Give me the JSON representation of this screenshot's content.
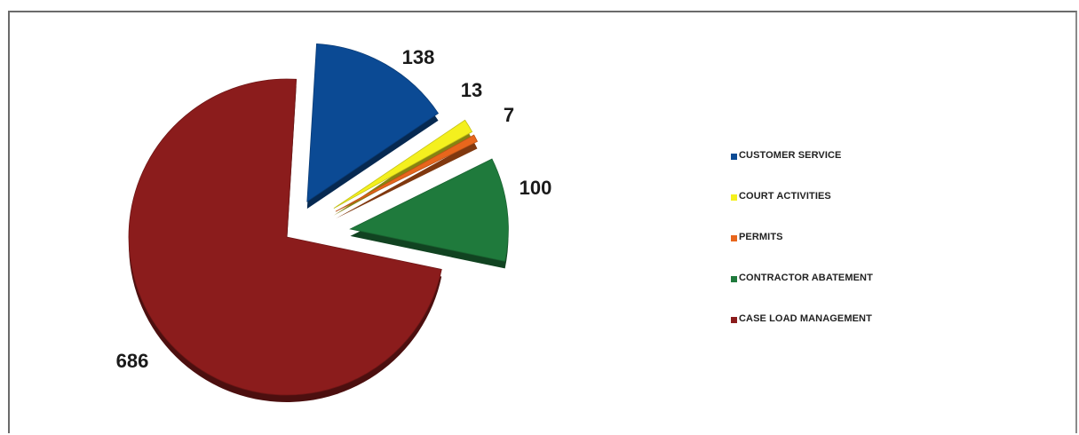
{
  "chart_data": {
    "type": "pie",
    "title": "",
    "categories": [
      "CUSTOMER SERVICE",
      "COURT ACTIVITIES",
      "PERMITS",
      "CONTRACTOR ABATEMENT",
      "CASE LOAD MANAGEMENT"
    ],
    "values": [
      138,
      13,
      7,
      100,
      686
    ],
    "data_labels": [
      "138",
      "13",
      "7",
      "100",
      "686"
    ],
    "colors": [
      "#0b4a94",
      "#f4f01e",
      "#e8661c",
      "#1f7a3c",
      "#8b1c1c"
    ],
    "legend_position": "right",
    "exploded": true,
    "style": "3d"
  },
  "legend": {
    "items": [
      {
        "label": "CUSTOMER SERVICE",
        "color": "#0b4a94"
      },
      {
        "label": "COURT ACTIVITIES",
        "color": "#f4f01e"
      },
      {
        "label": "PERMITS",
        "color": "#e8661c"
      },
      {
        "label": "CONTRACTOR ABATEMENT",
        "color": "#1f7a3c"
      },
      {
        "label": "CASE LOAD MANAGEMENT",
        "color": "#8b1c1c"
      }
    ]
  }
}
